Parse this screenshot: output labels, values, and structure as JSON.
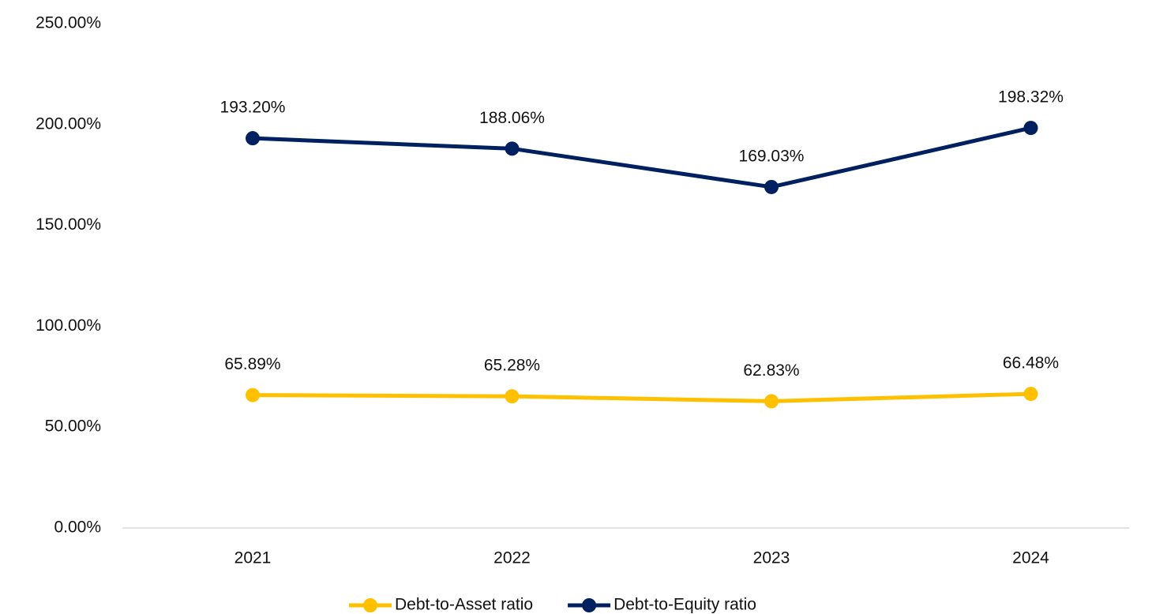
{
  "chart_data": {
    "type": "line",
    "categories": [
      "2021",
      "2022",
      "2023",
      "2024"
    ],
    "series": [
      {
        "name": "Debt-to-Asset ratio",
        "color": "#FFC000",
        "values": [
          65.89,
          65.28,
          62.83,
          66.48
        ],
        "value_labels": [
          "65.89%",
          "65.28%",
          "62.83%",
          "66.48%"
        ]
      },
      {
        "name": "Debt-to-Equity ratio",
        "color": "#002060",
        "values": [
          193.2,
          188.06,
          169.03,
          198.32
        ],
        "value_labels": [
          "193.20%",
          "188.06%",
          "169.03%",
          "198.32%"
        ]
      }
    ],
    "ylim": [
      0,
      250
    ],
    "yticks": [
      {
        "value": 0,
        "label": "0.00%"
      },
      {
        "value": 50,
        "label": "50.00%"
      },
      {
        "value": 100,
        "label": "100.00%"
      },
      {
        "value": 150,
        "label": "150.00%"
      },
      {
        "value": 200,
        "label": "200.00%"
      },
      {
        "value": 250,
        "label": "250.00%"
      }
    ],
    "grid": false,
    "legend": "bottom"
  }
}
